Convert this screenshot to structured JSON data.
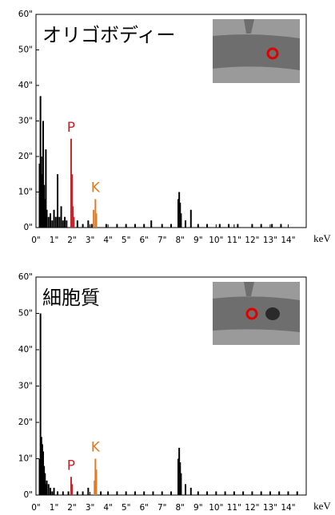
{
  "chart_data": [
    {
      "type": "bar",
      "title": "オリゴボディー",
      "x_label": "keV",
      "xlim": [
        0,
        15
      ],
      "ylim": [
        0,
        60
      ],
      "xticks": [
        {
          "value": 0,
          "label": "0\""
        },
        {
          "value": 1,
          "label": "1\""
        },
        {
          "value": 2,
          "label": "2\""
        },
        {
          "value": 3,
          "label": "3\""
        },
        {
          "value": 4,
          "label": "4\""
        },
        {
          "value": 5,
          "label": "5\""
        },
        {
          "value": 6,
          "label": "6\""
        },
        {
          "value": 7,
          "label": "7\""
        },
        {
          "value": 8,
          "label": "8\""
        },
        {
          "value": 9,
          "label": "9\""
        },
        {
          "value": 10,
          "label": "10\""
        },
        {
          "value": 11,
          "label": "11\""
        },
        {
          "value": 12,
          "label": "12\""
        },
        {
          "value": 13,
          "label": "13\""
        },
        {
          "value": 14,
          "label": "14\""
        }
      ],
      "yticks": [
        {
          "value": 0,
          "label": "0\""
        },
        {
          "value": 10,
          "label": "10\""
        },
        {
          "value": 20,
          "label": "20\""
        },
        {
          "value": 30,
          "label": "30\""
        },
        {
          "value": 40,
          "label": "40\""
        },
        {
          "value": 50,
          "label": "50\""
        },
        {
          "value": 60,
          "label": "60\""
        }
      ],
      "series": [
        {
          "color": "#000000",
          "x": [
            0.2,
            0.25,
            0.3,
            0.35,
            0.4,
            0.45,
            0.5,
            0.55,
            0.6,
            0.7,
            0.8,
            0.9,
            1.0,
            1.1,
            1.2,
            1.3,
            1.4,
            1.5,
            1.6,
            1.7,
            2.3,
            2.6,
            2.9,
            3.1,
            3.9,
            4.5,
            5.0,
            5.5,
            6.0,
            6.4,
            7.0,
            7.5,
            7.9,
            7.95,
            8.0,
            8.05,
            8.3,
            8.6,
            9.0,
            9.5,
            10.2,
            10.7,
            11.2,
            12.0,
            12.5,
            13.1,
            13.6
          ],
          "values": [
            18,
            37,
            20,
            15,
            30,
            12,
            8,
            22,
            5,
            3,
            4,
            2,
            5,
            3,
            15,
            3,
            6,
            2,
            3,
            2,
            2,
            1,
            2,
            1,
            1,
            1,
            1,
            1,
            1,
            2,
            1,
            1,
            8,
            10,
            7,
            4,
            2,
            5,
            1,
            1,
            1,
            1,
            1,
            1,
            1,
            1,
            1
          ]
        },
        {
          "name": "P",
          "color": "#c0282d",
          "x": [
            1.95,
            2.0,
            2.05,
            2.1
          ],
          "values": [
            25,
            15,
            6,
            3
          ]
        },
        {
          "name": "K",
          "color": "#e07b28",
          "x": [
            3.2,
            3.3,
            3.35
          ],
          "values": [
            5,
            8,
            4
          ]
        }
      ]
    },
    {
      "type": "bar",
      "title": "細胞質",
      "x_label": "keV",
      "xlim": [
        0,
        15
      ],
      "ylim": [
        0,
        60
      ],
      "xticks": [
        {
          "value": 0,
          "label": "0\""
        },
        {
          "value": 1,
          "label": "1\""
        },
        {
          "value": 2,
          "label": "2\""
        },
        {
          "value": 3,
          "label": "3\""
        },
        {
          "value": 4,
          "label": "4\""
        },
        {
          "value": 5,
          "label": "5\""
        },
        {
          "value": 6,
          "label": "6\""
        },
        {
          "value": 7,
          "label": "7\""
        },
        {
          "value": 8,
          "label": "8\""
        },
        {
          "value": 9,
          "label": "9\""
        },
        {
          "value": 10,
          "label": "10\""
        },
        {
          "value": 11,
          "label": "11\""
        },
        {
          "value": 12,
          "label": "12\""
        },
        {
          "value": 13,
          "label": "13\""
        },
        {
          "value": 14,
          "label": "14\""
        }
      ],
      "yticks": [
        {
          "value": 0,
          "label": "0\""
        },
        {
          "value": 10,
          "label": "10\""
        },
        {
          "value": 20,
          "label": "20\""
        },
        {
          "value": 30,
          "label": "30\""
        },
        {
          "value": 40,
          "label": "40\""
        },
        {
          "value": 50,
          "label": "50\""
        },
        {
          "value": 60,
          "label": "60\""
        }
      ],
      "series": [
        {
          "color": "#000000",
          "x": [
            0.2,
            0.25,
            0.3,
            0.35,
            0.4,
            0.45,
            0.5,
            0.55,
            0.6,
            0.7,
            0.8,
            0.9,
            1.0,
            1.2,
            1.5,
            1.8,
            2.3,
            2.6,
            2.9,
            3.6,
            4.0,
            4.5,
            5.0,
            5.5,
            6.0,
            6.5,
            7.0,
            7.5,
            7.9,
            7.95,
            8.0,
            8.05,
            8.3,
            8.6,
            9.0,
            9.5,
            10.0,
            10.5,
            11.0,
            11.5,
            12.0,
            12.5,
            13.0,
            13.5,
            14.0,
            14.5
          ],
          "values": [
            10,
            50,
            16,
            14,
            12,
            8,
            6,
            3,
            4,
            3,
            2,
            1,
            2,
            1,
            1,
            1,
            1,
            1,
            2,
            1,
            1,
            1,
            1,
            1,
            1,
            1,
            1,
            1,
            10,
            13,
            9,
            6,
            3,
            2,
            1,
            1,
            1,
            1,
            1,
            1,
            1,
            1,
            1,
            1,
            1,
            1
          ]
        },
        {
          "name": "P",
          "color": "#c0282d",
          "x": [
            1.95,
            2.0
          ],
          "values": [
            5,
            3
          ]
        },
        {
          "name": "K",
          "color": "#e07b28",
          "x": [
            3.25,
            3.3,
            3.35
          ],
          "values": [
            4,
            10,
            7
          ]
        }
      ]
    }
  ]
}
